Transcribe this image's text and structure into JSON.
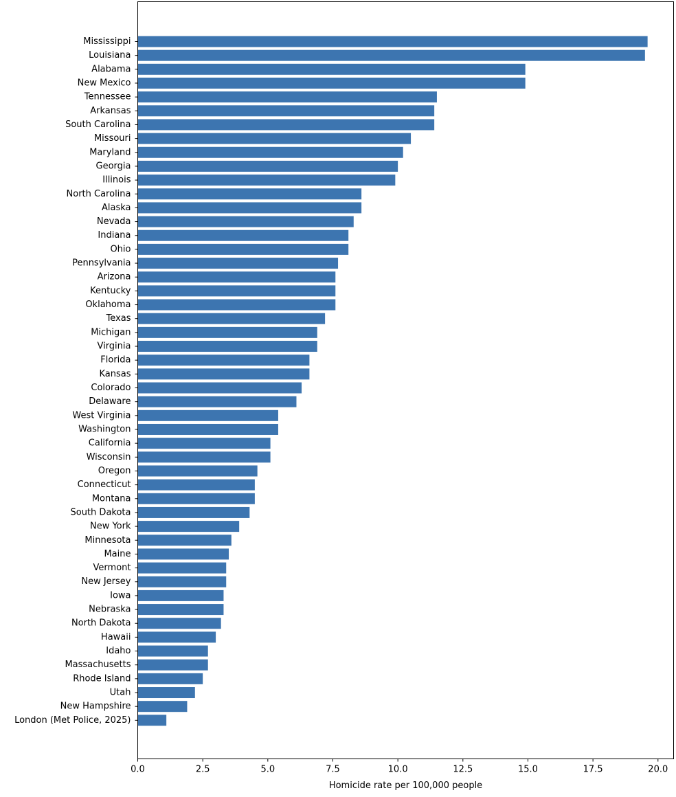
{
  "chart_data": {
    "type": "bar",
    "orientation": "horizontal",
    "xlabel": "Homicide rate per 100,000 people",
    "ylabel": "",
    "xlim": [
      0,
      20.6
    ],
    "xticks": [
      0,
      2.5,
      5,
      7.5,
      10,
      12.5,
      15,
      17.5,
      20
    ],
    "xtick_labels": [
      "0.0",
      "2.5",
      "5.0",
      "7.5",
      "10.0",
      "12.5",
      "15.0",
      "17.5",
      "20.0"
    ],
    "grid": false,
    "bar_color": "#3d75b0",
    "categories": [
      "Mississippi",
      "Louisiana",
      "Alabama",
      "New Mexico",
      "Tennessee",
      "Arkansas",
      "South Carolina",
      "Missouri",
      "Maryland",
      "Georgia",
      "Illinois",
      "North Carolina",
      "Alaska",
      "Nevada",
      "Indiana",
      "Ohio",
      "Pennsylvania",
      "Arizona",
      "Kentucky",
      "Oklahoma",
      "Texas",
      "Michigan",
      "Virginia",
      "Florida",
      "Kansas",
      "Colorado",
      "Delaware",
      "West Virginia",
      "Washington",
      "California",
      "Wisconsin",
      "Oregon",
      "Connecticut",
      "Montana",
      "South Dakota",
      "New York",
      "Minnesota",
      "Maine",
      "Vermont",
      "New Jersey",
      "Iowa",
      "Nebraska",
      "North Dakota",
      "Hawaii",
      "Idaho",
      "Massachusetts",
      "Rhode Island",
      "Utah",
      "New Hampshire",
      "London (Met Police, 2025)"
    ],
    "values": [
      19.6,
      19.5,
      14.9,
      14.9,
      11.5,
      11.4,
      11.4,
      10.5,
      10.2,
      10.0,
      9.9,
      8.6,
      8.6,
      8.3,
      8.1,
      8.1,
      7.7,
      7.6,
      7.6,
      7.6,
      7.2,
      6.9,
      6.9,
      6.6,
      6.6,
      6.3,
      6.1,
      5.4,
      5.4,
      5.1,
      5.1,
      4.6,
      4.5,
      4.5,
      4.3,
      3.9,
      3.6,
      3.5,
      3.4,
      3.4,
      3.3,
      3.3,
      3.2,
      3.0,
      2.7,
      2.7,
      2.5,
      2.2,
      1.9,
      1.1
    ]
  }
}
